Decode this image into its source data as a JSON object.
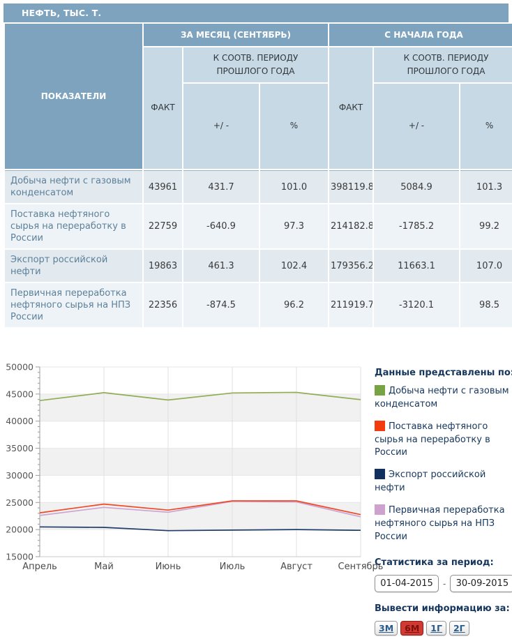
{
  "title": "НЕФТЬ, ТЫС. Т.",
  "table": {
    "indicators_header": "ПОКАЗАТЕЛИ",
    "month_group": "ЗА МЕСЯЦ (СЕНТЯБРЬ)",
    "ytd_group": "С НАЧАЛА ГОДА",
    "fact": "ФАКТ",
    "vs_prev": "К СООТВ. ПЕРИОДУ ПРОШЛОГО ГОДА",
    "plus_minus": "+/ -",
    "percent": "%",
    "rows": [
      [
        "Добыча нефти с газовым конденсатом",
        "43961",
        "431.7",
        "101.0",
        "398119.8",
        "5084.9",
        "101.3"
      ],
      [
        "Поставка нефтяного сырья на переработку в России",
        "22759",
        "-640.9",
        "97.3",
        "214182.8",
        "-1785.2",
        "99.2"
      ],
      [
        "Экспорт российской нефти",
        "19863",
        "461.3",
        "102.4",
        "179356.2",
        "11663.1",
        "107.0"
      ],
      [
        "Первичная переработка нефтяного сырья на НПЗ России",
        "22356",
        "-874.5",
        "96.2",
        "211919.7",
        "-3120.1",
        "98.5"
      ]
    ]
  },
  "chart_data": {
    "type": "line",
    "x": [
      "Апрель",
      "Май",
      "Июнь",
      "Июль",
      "Август",
      "Сентябрь"
    ],
    "series": [
      {
        "name": "Добыча нефти с газовым конденсатом",
        "color": "#8fae55",
        "legend_color": "#77a345",
        "z": 1,
        "values": [
          43800,
          45250,
          43900,
          45200,
          45300,
          43961
        ]
      },
      {
        "name": "Поставка нефтяного сырья на переработку в России",
        "color": "#ee4a27",
        "legend_color": "#f23c10",
        "z": 3,
        "values": [
          23100,
          24700,
          23600,
          25300,
          25300,
          22759
        ]
      },
      {
        "name": "Экспорт российской нефти",
        "color": "#1f3d68",
        "legend_color": "#12305e",
        "z": 4,
        "values": [
          20500,
          20400,
          19800,
          19900,
          20000,
          19863
        ]
      },
      {
        "name": "Первичная переработка нефтяного сырья на НПЗ России",
        "color": "#cfa3cf",
        "legend_color": "#cda2ce",
        "z": 2,
        "values": [
          22600,
          24100,
          23200,
          25200,
          25100,
          22356
        ]
      }
    ],
    "ylim": [
      15000,
      50000
    ],
    "ytick_step": 5000,
    "yticks": [
      15000,
      20000,
      25000,
      30000,
      35000,
      40000,
      45000,
      50000
    ],
    "grid": true,
    "band_fill": "#f1f1f1",
    "legend_position": "right",
    "title": "",
    "xlabel": "",
    "ylabel": ""
  },
  "legend": {
    "heading": "Данные представлены по:"
  },
  "period": {
    "heading": "Статистика за период:",
    "from": "01-04-2015",
    "to": "30-09-2015",
    "separator": "-"
  },
  "range_buttons": {
    "heading": "Вывести информацию за:",
    "items": [
      {
        "label": "3М",
        "active": false
      },
      {
        "label": "6М",
        "active": true
      },
      {
        "label": "1Г",
        "active": false
      },
      {
        "label": "2Г",
        "active": false
      }
    ]
  },
  "colors": {
    "header_bg": "#7ea3bf",
    "header_light_bg": "#c6d9e5",
    "row_odd_bg": "#e2eaf0",
    "row_even_bg": "#eef3f7",
    "label_text": "#5d8099",
    "heading_text": "#16365c",
    "link_color": "#2a5d8c",
    "active_button_bg": "#d03a33",
    "active_button_text": "#7e100c"
  }
}
